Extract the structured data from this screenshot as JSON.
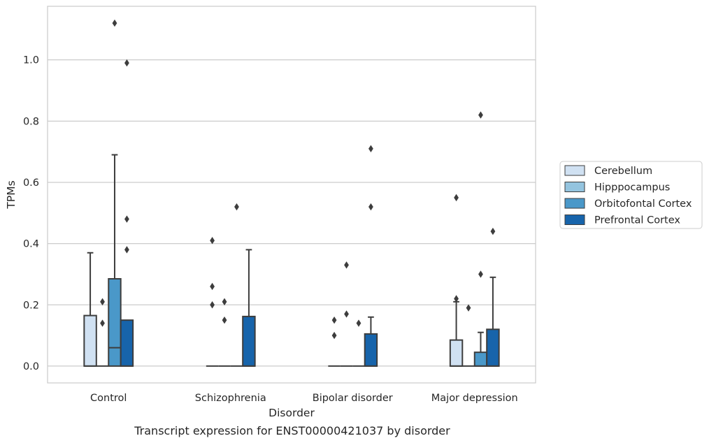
{
  "chart_data": {
    "type": "box",
    "caption": "Transcript expression for ENST00000421037 by disorder",
    "xlabel": "Disorder",
    "ylabel": "TPMs",
    "ylim": [
      -0.055,
      1.175
    ],
    "yticks": [
      0.0,
      0.2,
      0.4,
      0.6,
      0.8,
      1.0
    ],
    "ytick_labels": [
      "0.0",
      "0.2",
      "0.4",
      "0.6",
      "0.8",
      "1.0"
    ],
    "grid": "horizontal",
    "legend_position": "right",
    "categories": [
      "Control",
      "Schizophrenia",
      "Bipolar disorder",
      "Major depression"
    ],
    "series": [
      {
        "name": "Cerebellum",
        "color": "#d0e1f2",
        "boxes": [
          {
            "q1": 0.0,
            "median": 0.0,
            "q3": 0.165,
            "whisker_low": 0.0,
            "whisker_high": 0.37,
            "outliers": []
          },
          {
            "q1": 0.0,
            "median": 0.0,
            "q3": 0.0,
            "whisker_low": 0.0,
            "whisker_high": 0.0,
            "outliers": [
              0.41,
              0.26,
              0.2
            ]
          },
          {
            "q1": 0.0,
            "median": 0.0,
            "q3": 0.0,
            "whisker_low": 0.0,
            "whisker_high": 0.0,
            "outliers": [
              0.15,
              0.1
            ]
          },
          {
            "q1": 0.0,
            "median": 0.0,
            "q3": 0.085,
            "whisker_low": 0.0,
            "whisker_high": 0.21,
            "outliers": [
              0.55,
              0.22
            ]
          }
        ]
      },
      {
        "name": "Hipppocampus",
        "color": "#94c4df",
        "boxes": [
          {
            "q1": 0.0,
            "median": 0.0,
            "q3": 0.0,
            "whisker_low": 0.0,
            "whisker_high": 0.0,
            "outliers": [
              0.21,
              0.14
            ]
          },
          {
            "q1": 0.0,
            "median": 0.0,
            "q3": 0.0,
            "whisker_low": 0.0,
            "whisker_high": 0.0,
            "outliers": [
              0.21,
              0.15
            ]
          },
          {
            "q1": 0.0,
            "median": 0.0,
            "q3": 0.0,
            "whisker_low": 0.0,
            "whisker_high": 0.0,
            "outliers": [
              0.33,
              0.17
            ]
          },
          {
            "q1": 0.0,
            "median": 0.0,
            "q3": 0.0,
            "whisker_low": 0.0,
            "whisker_high": 0.0,
            "outliers": [
              0.19
            ]
          }
        ]
      },
      {
        "name": "Orbitofontal Cortex",
        "color": "#4a98c9",
        "boxes": [
          {
            "q1": 0.0,
            "median": 0.06,
            "q3": 0.285,
            "whisker_low": 0.0,
            "whisker_high": 0.69,
            "outliers": [
              1.12
            ]
          },
          {
            "q1": 0.0,
            "median": 0.0,
            "q3": 0.0,
            "whisker_low": 0.0,
            "whisker_high": 0.0,
            "outliers": [
              0.52
            ]
          },
          {
            "q1": 0.0,
            "median": 0.0,
            "q3": 0.0,
            "whisker_low": 0.0,
            "whisker_high": 0.0,
            "outliers": [
              0.14
            ]
          },
          {
            "q1": 0.0,
            "median": 0.0,
            "q3": 0.045,
            "whisker_low": 0.0,
            "whisker_high": 0.11,
            "outliers": [
              0.82,
              0.3
            ]
          }
        ]
      },
      {
        "name": "Prefrontal Cortex",
        "color": "#1764ab",
        "boxes": [
          {
            "q1": 0.0,
            "median": 0.0,
            "q3": 0.15,
            "whisker_low": 0.0,
            "whisker_high": 0.15,
            "outliers": [
              0.99,
              0.48,
              0.38
            ]
          },
          {
            "q1": 0.0,
            "median": 0.0,
            "q3": 0.162,
            "whisker_low": 0.0,
            "whisker_high": 0.38,
            "outliers": []
          },
          {
            "q1": 0.0,
            "median": 0.0,
            "q3": 0.105,
            "whisker_low": 0.0,
            "whisker_high": 0.16,
            "outliers": [
              0.71,
              0.52
            ]
          },
          {
            "q1": 0.0,
            "median": 0.0,
            "q3": 0.12,
            "whisker_low": 0.0,
            "whisker_high": 0.29,
            "outliers": [
              0.44
            ]
          }
        ]
      }
    ]
  }
}
